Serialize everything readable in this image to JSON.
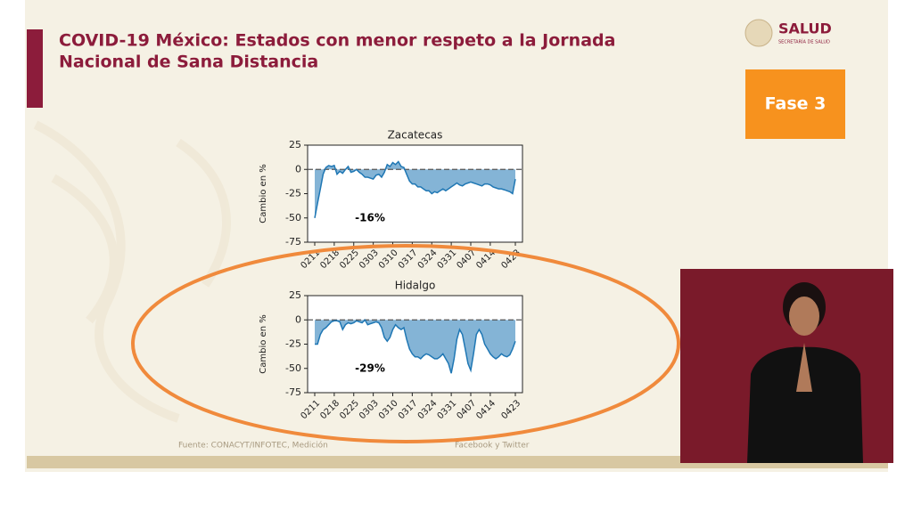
{
  "slide": {
    "title_line1": "COVID-19 México: Estados con menor respeto a la Jornada",
    "title_line2": "Nacional de Sana Distancia",
    "logo": "SALUD",
    "logo_sub": "SECRETARÍA DE SALUD",
    "phase": "Fase 3",
    "source_left": "Fuente: CONACYT/INFOTEC, Medición",
    "source_right": "Facebook y Twitter"
  },
  "chart_data": [
    {
      "type": "area",
      "title": "Zacatecas",
      "y_label": "Cambio en %",
      "annotation": "-16%",
      "color": "#1f77b4",
      "categories": [
        "0211",
        null,
        null,
        null,
        null,
        null,
        null,
        "0218",
        null,
        null,
        null,
        null,
        null,
        null,
        "0225",
        null,
        null,
        null,
        null,
        null,
        null,
        "0303",
        null,
        null,
        null,
        null,
        null,
        null,
        "0310",
        null,
        null,
        null,
        null,
        null,
        null,
        "0317",
        null,
        null,
        null,
        null,
        null,
        null,
        "0324",
        null,
        null,
        null,
        null,
        null,
        null,
        "0331",
        null,
        null,
        null,
        null,
        null,
        null,
        "0407",
        null,
        null,
        null,
        null,
        null,
        null,
        "0414",
        null,
        null,
        null,
        null,
        null,
        null,
        null,
        null,
        "0423"
      ],
      "values": [
        -50,
        -35,
        -20,
        -5,
        2,
        4,
        3,
        4,
        -5,
        -2,
        -4,
        0,
        3,
        -3,
        -2,
        0,
        -3,
        -5,
        -8,
        -8,
        -9,
        -10,
        -6,
        -5,
        -8,
        -3,
        5,
        3,
        7,
        5,
        8,
        3,
        2,
        -5,
        -12,
        -15,
        -15,
        -18,
        -18,
        -20,
        -22,
        -22,
        -25,
        -23,
        -24,
        -22,
        -20,
        -22,
        -20,
        -18,
        -16,
        -14,
        -16,
        -17,
        -15,
        -14,
        -13,
        -14,
        -15,
        -16,
        -17,
        -15,
        -15,
        -16,
        -18,
        -19,
        -20,
        -20,
        -21,
        -22,
        -23,
        -25,
        -10
      ],
      "ylim": [
        -75,
        25
      ],
      "yticks": [
        25,
        0,
        -25,
        -50,
        -75
      ]
    },
    {
      "type": "area",
      "title": "Hidalgo",
      "y_label": "Cambio en %",
      "annotation": "-29%",
      "color": "#1f77b4",
      "categories": [
        "0211",
        null,
        null,
        null,
        null,
        null,
        null,
        "0218",
        null,
        null,
        null,
        null,
        null,
        null,
        "0225",
        null,
        null,
        null,
        null,
        null,
        null,
        "0303",
        null,
        null,
        null,
        null,
        null,
        null,
        "0310",
        null,
        null,
        null,
        null,
        null,
        null,
        "0317",
        null,
        null,
        null,
        null,
        null,
        null,
        "0324",
        null,
        null,
        null,
        null,
        null,
        null,
        "0331",
        null,
        null,
        null,
        null,
        null,
        null,
        "0407",
        null,
        null,
        null,
        null,
        null,
        null,
        "0414",
        null,
        null,
        null,
        null,
        null,
        null,
        null,
        null,
        "0423"
      ],
      "values": [
        -25,
        -25,
        -15,
        -10,
        -8,
        -5,
        -2,
        -1,
        -1,
        -2,
        -10,
        -5,
        -3,
        -4,
        -3,
        -1,
        -2,
        -3,
        0,
        -5,
        -4,
        -3,
        -2,
        -3,
        -8,
        -18,
        -22,
        -18,
        -10,
        -5,
        -8,
        -10,
        -8,
        -20,
        -30,
        -35,
        -38,
        -38,
        -40,
        -37,
        -35,
        -36,
        -38,
        -40,
        -40,
        -38,
        -35,
        -40,
        -45,
        -55,
        -40,
        -20,
        -10,
        -15,
        -30,
        -45,
        -52,
        -35,
        -15,
        -10,
        -15,
        -25,
        -30,
        -35,
        -38,
        -40,
        -38,
        -35,
        -37,
        -38,
        -36,
        -30,
        -22
      ],
      "ylim": [
        -75,
        25
      ],
      "yticks": [
        25,
        0,
        -25,
        -50,
        -75
      ]
    }
  ]
}
